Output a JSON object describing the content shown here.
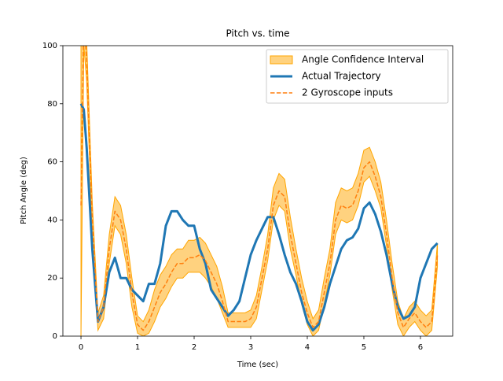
{
  "chart_data": {
    "type": "line",
    "title": "Pitch vs. time",
    "xlabel": "Time (sec)",
    "ylabel": "Pitch Angle (deg)",
    "x": [
      0,
      0.05,
      0.1,
      0.2,
      0.3,
      0.4,
      0.5,
      0.6,
      0.7,
      0.8,
      0.9,
      1.0,
      1.1,
      1.2,
      1.3,
      1.4,
      1.5,
      1.6,
      1.7,
      1.8,
      1.9,
      2.0,
      2.1,
      2.2,
      2.3,
      2.4,
      2.5,
      2.6,
      2.7,
      2.8,
      2.9,
      3.0,
      3.1,
      3.2,
      3.3,
      3.4,
      3.5,
      3.6,
      3.7,
      3.8,
      3.9,
      4.0,
      4.1,
      4.2,
      4.3,
      4.4,
      4.5,
      4.6,
      4.7,
      4.8,
      4.9,
      5.0,
      5.1,
      5.2,
      5.3,
      5.4,
      5.5,
      5.6,
      5.7,
      5.8,
      5.9,
      6.0,
      6.1,
      6.2,
      6.3
    ],
    "series": [
      {
        "name": "Angle Confidence Interval",
        "color": "#ffa500",
        "style": "band",
        "lower": [
          0,
          100,
          88,
          34,
          2,
          6,
          25,
          38,
          35,
          25,
          10,
          1,
          0,
          1,
          5,
          10,
          13,
          17,
          20,
          20,
          22,
          22,
          22,
          20,
          17,
          13,
          8,
          3,
          3,
          3,
          3,
          3,
          6,
          16,
          26,
          40,
          45,
          43,
          30,
          21,
          11,
          4,
          0,
          2,
          11,
          21,
          35,
          40,
          39,
          40,
          45,
          53,
          55,
          50,
          44,
          31,
          16,
          4,
          0,
          3,
          5,
          2,
          0,
          2,
          24
        ],
        "upper": [
          120,
          120,
          102,
          46,
          8,
          14,
          35,
          48,
          45,
          35,
          20,
          7,
          5,
          9,
          16,
          21,
          24,
          28,
          30,
          30,
          33,
          33,
          34,
          32,
          28,
          24,
          17,
          8,
          8,
          8,
          8,
          9,
          14,
          24,
          35,
          51,
          56,
          54,
          41,
          30,
          20,
          12,
          6,
          9,
          20,
          30,
          46,
          51,
          50,
          51,
          56,
          64,
          65,
          60,
          53,
          40,
          25,
          12,
          6,
          10,
          12,
          9,
          7,
          9,
          32
        ]
      },
      {
        "name": "Actual Trajectory",
        "color": "#1f77b4",
        "style": "solid",
        "values": [
          80,
          78,
          65,
          30,
          5,
          10,
          22,
          27,
          20,
          20,
          16,
          14,
          12,
          18,
          18,
          25,
          38,
          43,
          43,
          40,
          38,
          38,
          30,
          25,
          16,
          13,
          10,
          7,
          9,
          12,
          20,
          28,
          33,
          37,
          41,
          41,
          35,
          28,
          22,
          18,
          12,
          5,
          2,
          4,
          10,
          18,
          24,
          30,
          33,
          34,
          37,
          44,
          46,
          42,
          36,
          28,
          18,
          10,
          6,
          7,
          10,
          20,
          25,
          30,
          32
        ]
      },
      {
        "name": "2 Gyroscope inputs",
        "color": "#ff7f0e",
        "style": "dashed",
        "values": [
          45,
          110,
          95,
          40,
          5,
          10,
          30,
          43,
          40,
          30,
          15,
          4,
          2,
          5,
          10,
          15,
          18,
          22,
          25,
          25,
          27,
          27,
          28,
          26,
          22,
          18,
          12,
          5,
          5,
          5,
          5,
          6,
          10,
          20,
          30,
          45,
          50,
          48,
          35,
          25,
          15,
          8,
          3,
          5,
          15,
          25,
          40,
          45,
          44,
          45,
          50,
          58,
          60,
          55,
          48,
          35,
          20,
          8,
          3,
          6,
          8,
          5,
          3,
          5,
          28
        ]
      }
    ],
    "xlim": [
      -0.32,
      6.57
    ],
    "ylim": [
      0,
      100
    ],
    "xticks": [
      0,
      1,
      2,
      3,
      4,
      5,
      6
    ],
    "yticks": [
      0,
      20,
      40,
      60,
      80,
      100
    ],
    "legend": "upper right"
  }
}
